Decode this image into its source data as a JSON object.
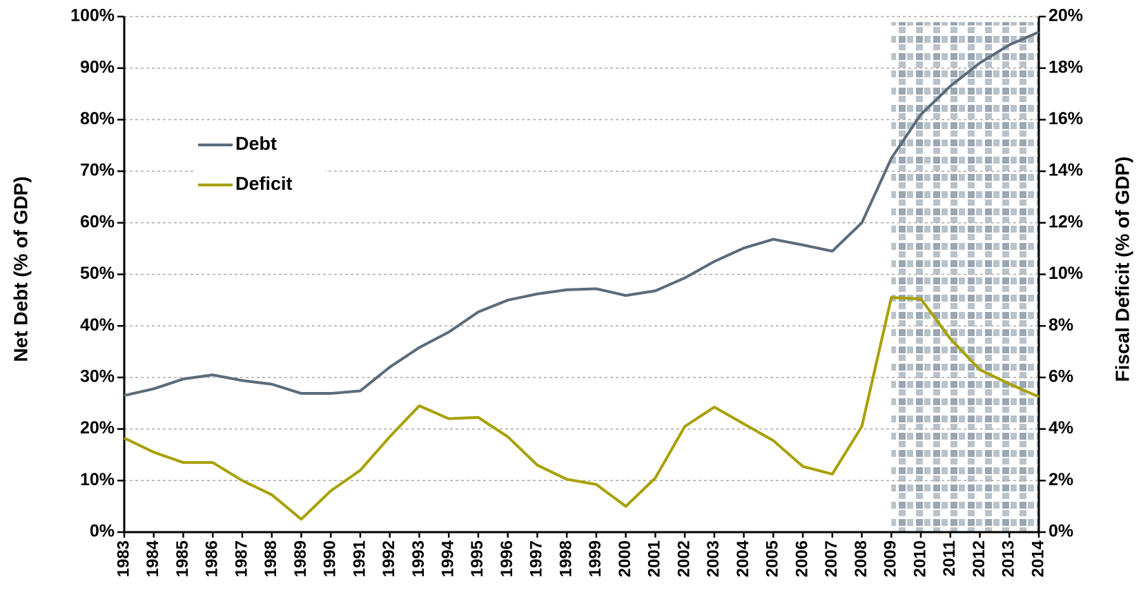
{
  "chart_data": {
    "type": "line",
    "x": [
      1983,
      1984,
      1985,
      1986,
      1987,
      1988,
      1989,
      1990,
      1991,
      1992,
      1993,
      1994,
      1995,
      1996,
      1997,
      1998,
      1999,
      2000,
      2001,
      2002,
      2003,
      2004,
      2005,
      2006,
      2007,
      2008,
      2009,
      2010,
      2011,
      2012,
      2013,
      2014
    ],
    "xlim": [
      1983,
      2014
    ],
    "xticks": [
      1983,
      1984,
      1985,
      1986,
      1987,
      1988,
      1989,
      1990,
      1991,
      1992,
      1993,
      1994,
      1995,
      1996,
      1997,
      1998,
      1999,
      2000,
      2001,
      2002,
      2003,
      2004,
      2005,
      2006,
      2007,
      2008,
      2009,
      2010,
      2011,
      2012,
      2013,
      2014
    ],
    "ylabel": "Net Debt (% of GDP)",
    "y2label": "Fiscal Deficit (% of GDP)",
    "ylim": [
      0,
      100
    ],
    "yticks": [
      {
        "value": 0,
        "label": "0%"
      },
      {
        "value": 10,
        "label": "10%"
      },
      {
        "value": 20,
        "label": "20%"
      },
      {
        "value": 30,
        "label": "30%"
      },
      {
        "value": 40,
        "label": "40%"
      },
      {
        "value": 50,
        "label": "50%"
      },
      {
        "value": 60,
        "label": "60%"
      },
      {
        "value": 70,
        "label": "70%"
      },
      {
        "value": 80,
        "label": "80%"
      },
      {
        "value": 90,
        "label": "90%"
      },
      {
        "value": 100,
        "label": "100%"
      }
    ],
    "y2lim": [
      0,
      20
    ],
    "y2ticks": [
      {
        "value": 0,
        "label": "0%"
      },
      {
        "value": 2,
        "label": "2%"
      },
      {
        "value": 4,
        "label": "4%"
      },
      {
        "value": 6,
        "label": "6%"
      },
      {
        "value": 8,
        "label": "8%"
      },
      {
        "value": 10,
        "label": "10%"
      },
      {
        "value": 12,
        "label": "12%"
      },
      {
        "value": 14,
        "label": "14%"
      },
      {
        "value": 16,
        "label": "16%"
      },
      {
        "value": 18,
        "label": "18%"
      },
      {
        "value": 20,
        "label": "20%"
      }
    ],
    "grid": true,
    "legend": "upper left",
    "shaded_xrange": [
      2009,
      2014
    ],
    "series": [
      {
        "name": "Debt",
        "color": "#5b6b7a",
        "values": [
          26.5,
          27.8,
          29.7,
          30.5,
          29.4,
          28.7,
          26.9,
          26.9,
          27.4,
          32,
          35.8,
          38.8,
          42.7,
          45,
          46.2,
          47,
          47.2,
          45.9,
          46.8,
          49.3,
          52.5,
          55.1,
          56.8,
          55.7,
          54.5,
          60,
          72.5,
          81,
          86.5,
          91,
          94.5,
          97
        ]
      },
      {
        "name": "Deficit",
        "color": "#a8a000",
        "axis": "y2",
        "values": [
          3.65,
          3.1,
          2.7,
          2.7,
          2.0,
          1.45,
          0.5,
          1.6,
          2.4,
          3.7,
          4.9,
          4.4,
          4.45,
          3.7,
          2.6,
          2.05,
          1.85,
          1.0,
          2.1,
          4.1,
          4.85,
          4.2,
          3.55,
          2.55,
          2.25,
          4.1,
          9.1,
          9.05,
          7.5,
          6.3,
          5.75,
          5.25
        ]
      }
    ]
  }
}
